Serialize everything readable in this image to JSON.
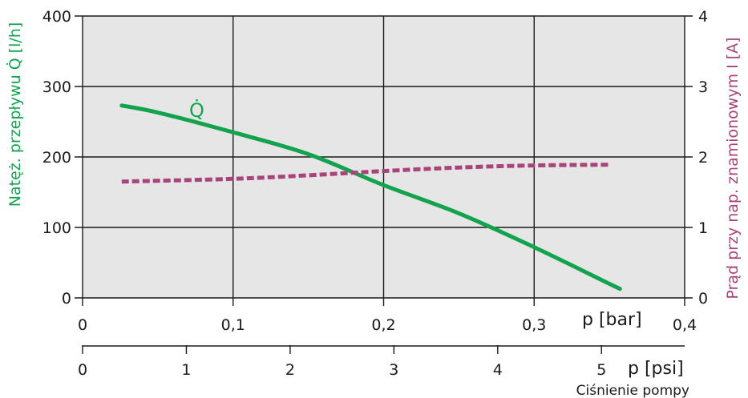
{
  "colors": {
    "plot_background": "#e6e6e6",
    "flow": "#13a34f",
    "current": "#a9447a",
    "grid": "#1a1a1a"
  },
  "chart_data": {
    "type": "line",
    "x_bar": {
      "unit_label": "p [bar]",
      "range": [
        0,
        0.4
      ],
      "ticks": [
        0,
        0.1,
        0.2,
        0.3,
        0.4
      ],
      "tick_labels": [
        "0",
        "0,1",
        "0,2",
        "0,3",
        "0,4"
      ]
    },
    "x_psi": {
      "unit_label": "p [psi]",
      "caption": "Ciśnienie pompy",
      "range": [
        0,
        5.8015
      ],
      "ticks": [
        0,
        1,
        2,
        3,
        4,
        5
      ],
      "tick_labels": [
        "0",
        "1",
        "2",
        "3",
        "4",
        "5"
      ]
    },
    "y_left": {
      "label": "Natęż. przepływu Q̇ [l/h]",
      "range": [
        0,
        400
      ],
      "ticks": [
        0,
        100,
        200,
        300,
        400
      ],
      "tick_labels": [
        "0",
        "100",
        "200",
        "300",
        "400"
      ]
    },
    "y_right": {
      "label": "Prąd przy nap. znamionowym I [A]",
      "range": [
        0,
        4
      ],
      "ticks": [
        0,
        1,
        2,
        3,
        4
      ],
      "tick_labels": [
        "0",
        "1",
        "2",
        "3",
        "4"
      ]
    },
    "grid": true,
    "series": [
      {
        "name": "Q̇",
        "axis": "left",
        "style": "solid",
        "x": [
          0.026,
          0.05,
          0.1,
          0.15,
          0.2,
          0.25,
          0.3,
          0.35,
          0.357
        ],
        "y": [
          273,
          263,
          235,
          204,
          160,
          120,
          72,
          20,
          13
        ]
      },
      {
        "axis": "right",
        "style": "dashed",
        "x": [
          0.026,
          0.1,
          0.15,
          0.2,
          0.25,
          0.3,
          0.35
        ],
        "y": [
          1.65,
          1.69,
          1.74,
          1.8,
          1.85,
          1.88,
          1.89
        ]
      }
    ]
  }
}
